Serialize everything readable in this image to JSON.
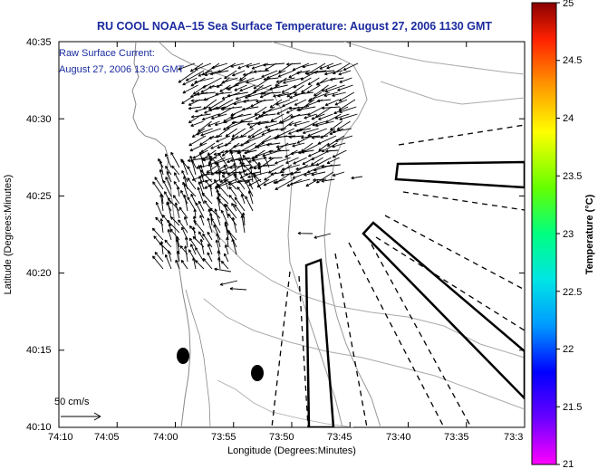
{
  "title": "RU COOL  NOAA–15  Sea Surface Temperature:  August 27, 2006 1130 GMT",
  "annotation": {
    "line1": "Raw Surface Current:",
    "line2": "August 27, 2006 13:00 GMT"
  },
  "scale_label": "50 cm/s",
  "x_axis": {
    "label": "Longitude (Degrees:Minutes)",
    "ticks": [
      "74:10",
      "74:05",
      "74:00",
      "73:55",
      "73:50",
      "73:45",
      "73:40",
      "73:35",
      "73:3"
    ]
  },
  "y_axis": {
    "label": "Latitude (Degrees:Minutes)",
    "ticks": [
      "40:35",
      "40:30",
      "40:25",
      "40:20",
      "40:15",
      "40:10"
    ]
  },
  "colorbar": {
    "label": "Temperature (°C)",
    "ticks": [
      "25",
      "24.5",
      "24",
      "23.5",
      "23",
      "22.5",
      "22",
      "21.5",
      "21"
    ],
    "min": 21,
    "max": 25,
    "colors": [
      "#ff00ff",
      "#6a00ff",
      "#0000ff",
      "#0099ff",
      "#00e5e5",
      "#00ff80",
      "#66ff00",
      "#ffff00",
      "#ff9900",
      "#ff2200",
      "#8a0000"
    ]
  },
  "colors": {
    "title": "#1a2a9e",
    "coastline": "#888888",
    "vectors": "#000000"
  }
}
